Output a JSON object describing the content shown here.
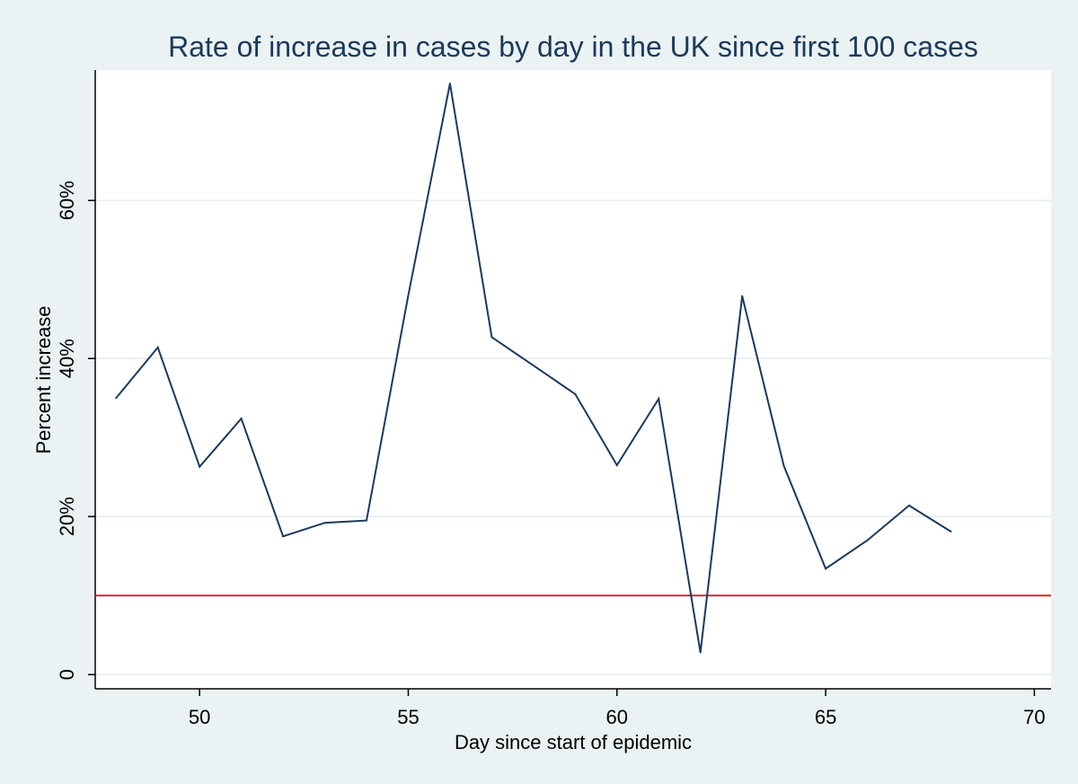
{
  "chart_data": {
    "type": "line",
    "title": "Rate of increase in cases by day in the UK since first 100 cases",
    "xlabel": "Day since start of epidemic",
    "ylabel": "Percent increase",
    "xlim": [
      47.5,
      70.4
    ],
    "ylim": [
      -1.8,
      76.5
    ],
    "x_ticks": [
      {
        "value": 50,
        "label": "50"
      },
      {
        "value": 55,
        "label": "55"
      },
      {
        "value": 60,
        "label": "60"
      },
      {
        "value": 65,
        "label": "65"
      },
      {
        "value": 70,
        "label": "70"
      }
    ],
    "y_ticks": [
      {
        "value": 0,
        "label": "0"
      },
      {
        "value": 20,
        "label": "20%"
      },
      {
        "value": 40,
        "label": "40%"
      },
      {
        "value": 60,
        "label": "60%"
      }
    ],
    "grid": true,
    "series": [
      {
        "name": "Percent increase",
        "color": "#1a3a5c",
        "x": [
          48,
          49,
          50,
          51,
          52,
          53,
          54,
          55,
          56,
          57,
          58,
          59,
          60,
          61,
          62,
          63,
          64,
          65,
          66,
          67,
          68
        ],
        "y": [
          35.0,
          41.4,
          26.3,
          32.4,
          17.5,
          19.2,
          19.5,
          48.0,
          74.8,
          42.7,
          39.1,
          35.5,
          26.5,
          34.9,
          2.8,
          47.9,
          26.4,
          13.4,
          17.0,
          21.4,
          18.1
        ]
      }
    ],
    "reference_line": {
      "y": 10,
      "color": "#e8262b"
    },
    "colors": {
      "background": "#eaf2f3",
      "plot_background": "#ffffff",
      "gridline": "#e3ecef",
      "axis": "#000000",
      "title": "#1a3a5c"
    }
  }
}
